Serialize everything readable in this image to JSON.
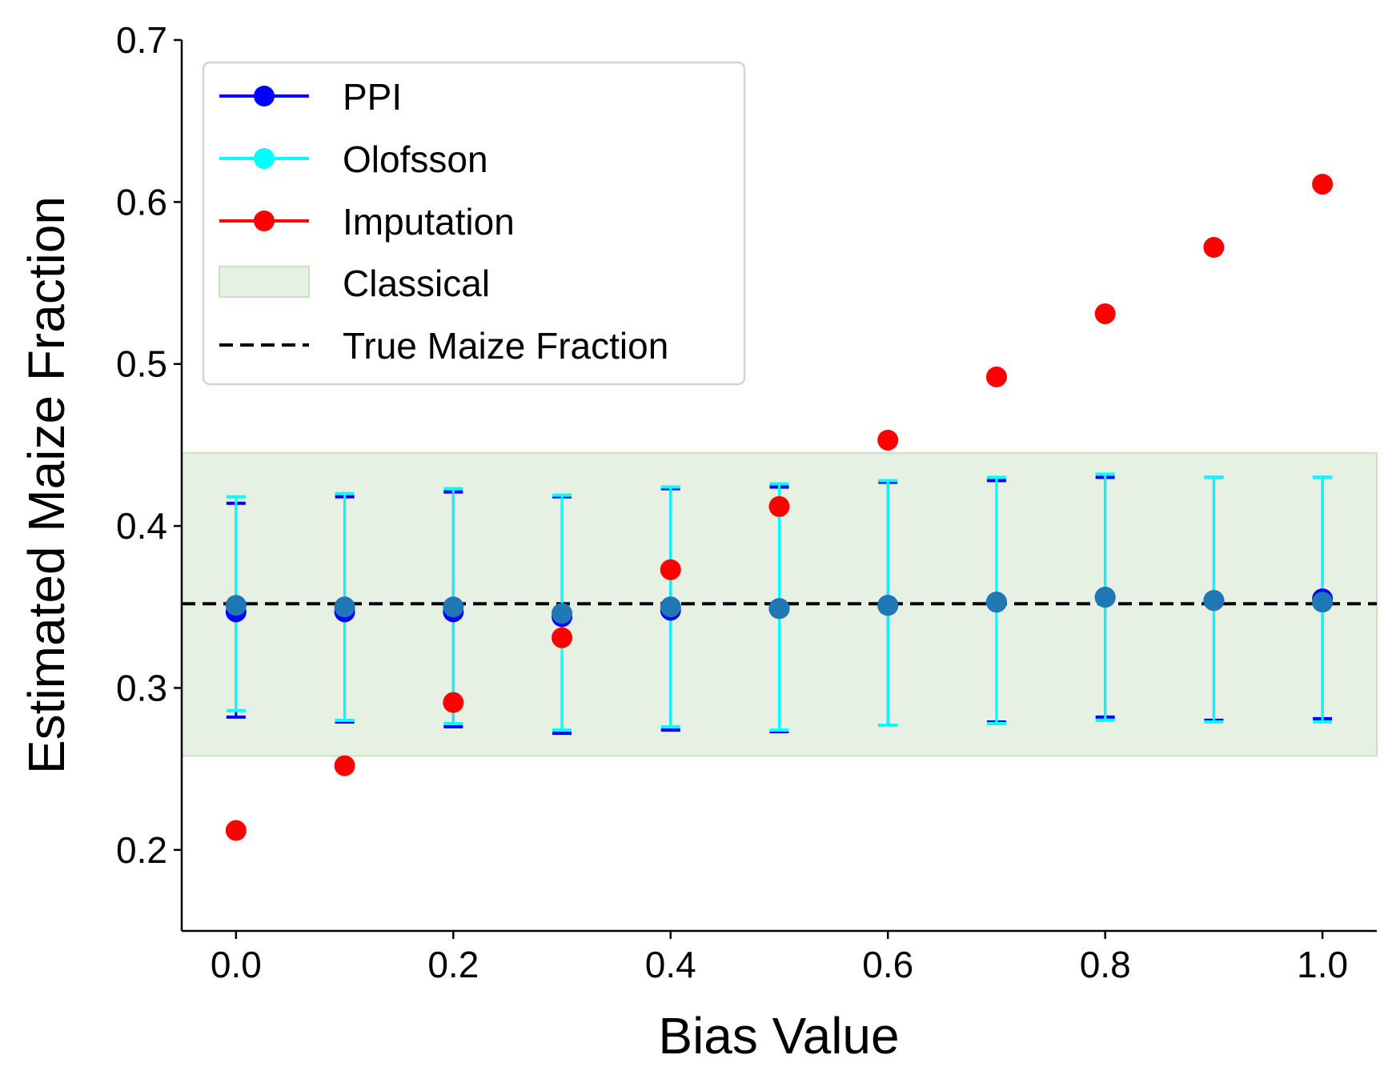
{
  "chart_data": {
    "type": "scatter",
    "xlabel": "Bias Value",
    "ylabel": "Estimated Maize Fraction",
    "xlim": [
      -0.05,
      1.05
    ],
    "ylim": [
      0.15,
      0.7
    ],
    "xticks": [
      "0.0",
      "0.2",
      "0.4",
      "0.6",
      "0.8",
      "1.0"
    ],
    "yticks": [
      "0.2",
      "0.3",
      "0.4",
      "0.5",
      "0.6",
      "0.7"
    ],
    "grid": false,
    "legend_position": "top-left",
    "x": [
      0.0,
      0.1,
      0.2,
      0.3,
      0.4,
      0.5,
      0.6,
      0.7,
      0.8,
      0.9,
      1.0
    ],
    "series": [
      {
        "name": "PPI",
        "color": "#0000ff",
        "marker": "circle",
        "values": [
          0.347,
          0.347,
          0.347,
          0.344,
          0.348,
          0.349,
          0.351,
          0.353,
          0.356,
          0.354,
          0.355
        ],
        "ci_low": [
          0.282,
          0.279,
          0.276,
          0.272,
          0.274,
          0.273,
          0.277,
          0.279,
          0.282,
          0.28,
          0.281
        ],
        "ci_high": [
          0.414,
          0.418,
          0.421,
          0.418,
          0.423,
          0.424,
          0.427,
          0.428,
          0.43,
          0.43,
          0.43
        ]
      },
      {
        "name": "Olofsson",
        "color": "#00ffff",
        "marker": "circle",
        "values": [
          0.351,
          0.35,
          0.35,
          0.346,
          0.35,
          0.349,
          0.351,
          0.353,
          0.356,
          0.354,
          0.353
        ],
        "ci_low": [
          0.286,
          0.28,
          0.278,
          0.274,
          0.276,
          0.274,
          0.277,
          0.278,
          0.28,
          0.279,
          0.279
        ],
        "ci_high": [
          0.418,
          0.42,
          0.423,
          0.419,
          0.424,
          0.426,
          0.428,
          0.43,
          0.432,
          0.43,
          0.43
        ]
      },
      {
        "name": "Imputation",
        "color": "#ff0000",
        "marker": "circle",
        "values": [
          0.212,
          0.252,
          0.291,
          0.331,
          0.373,
          0.412,
          0.453,
          0.492,
          0.531,
          0.572,
          0.611
        ]
      },
      {
        "name": "Classical",
        "type": "band",
        "color": "#e6f0e3",
        "low": 0.258,
        "high": 0.445
      },
      {
        "name": "True Maize Fraction",
        "type": "hline",
        "color": "#000000",
        "style": "dashed",
        "value": 0.352
      }
    ]
  }
}
